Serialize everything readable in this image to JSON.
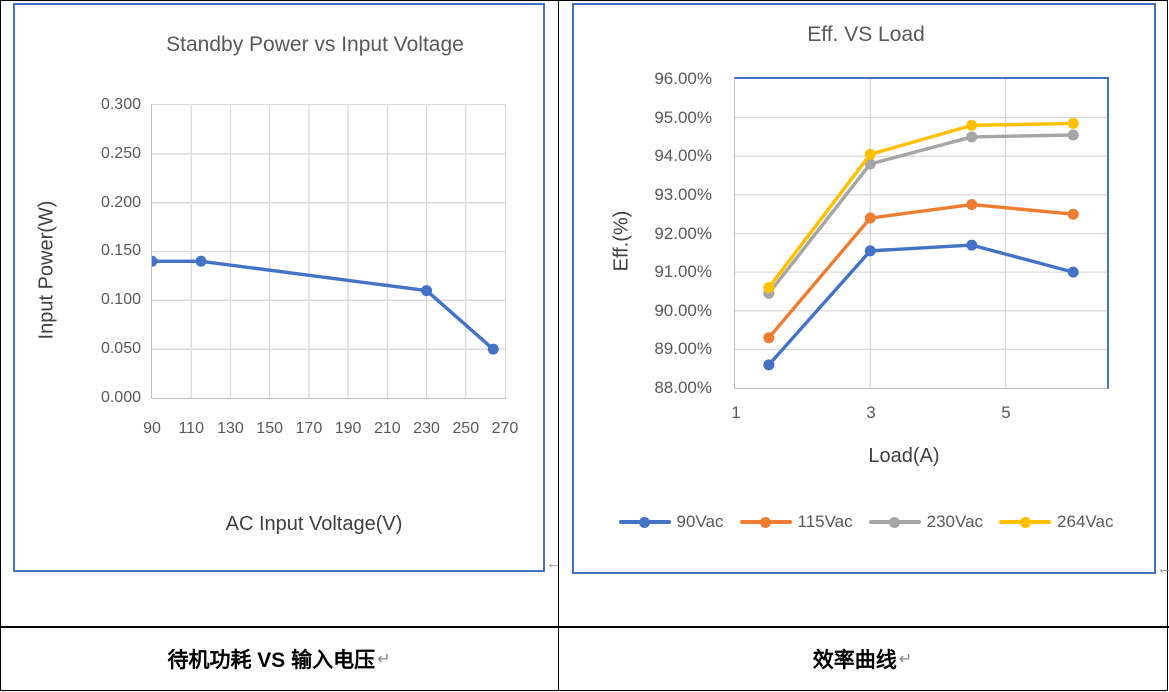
{
  "marks": {
    "anchor": "←",
    "return": "↵"
  },
  "colors": {
    "chart_box_border": "#4472C4",
    "table_border": "#000000",
    "gridline": "#D9D9D9",
    "axis_line": "#BFBFBF",
    "title_text": "#595959",
    "axis_title_text": "#404040"
  },
  "left_chart": {
    "title": "Standby Power vs Input Voltage",
    "y_axis_title": "Input Power(W)",
    "x_axis_title": "AC Input Voltage(V)",
    "y_ticks": [
      "0.300",
      "0.250",
      "0.200",
      "0.150",
      "0.100",
      "0.050",
      "0.000"
    ],
    "x_ticks": [
      "90",
      "110",
      "130",
      "150",
      "170",
      "190",
      "210",
      "230",
      "250",
      "270"
    ]
  },
  "right_chart": {
    "title": "Eff. VS Load",
    "y_axis_title": "Eff.(%)",
    "x_axis_title": "Load(A)",
    "y_ticks": [
      "96.00%",
      "95.00%",
      "94.00%",
      "93.00%",
      "92.00%",
      "91.00%",
      "90.00%",
      "89.00%",
      "88.00%"
    ],
    "x_ticks": [
      "1",
      "3",
      "5"
    ]
  },
  "captions": {
    "left": "待机功耗 VS 输入电压",
    "right": "效率曲线"
  },
  "chart_data": [
    {
      "type": "line",
      "title": "Standby Power vs Input Voltage",
      "xlabel": "AC Input Voltage(V)",
      "ylabel": "Input Power(W)",
      "x": [
        90,
        115,
        230,
        264
      ],
      "values": [
        0.14,
        0.14,
        0.11,
        0.05
      ],
      "series_color": "#4472C4",
      "xlim": [
        90,
        270
      ],
      "ylim": [
        0,
        0.3
      ],
      "x_ticks": [
        90,
        110,
        130,
        150,
        170,
        190,
        210,
        230,
        250,
        270
      ],
      "y_ticks": [
        0,
        0.05,
        0.1,
        0.15,
        0.2,
        0.25,
        0.3
      ],
      "grid": true,
      "legend_position": "none"
    },
    {
      "type": "line",
      "title": "Eff. VS Load",
      "xlabel": "Load(A)",
      "ylabel": "Eff.(%)",
      "x": [
        1.5,
        3,
        4.5,
        6
      ],
      "series": [
        {
          "name": "90Vac",
          "color": "#4472C4",
          "values": [
            88.6,
            91.55,
            91.7,
            91.0
          ]
        },
        {
          "name": "115Vac",
          "color": "#ED7D31",
          "values": [
            89.3,
            92.4,
            92.75,
            92.5
          ]
        },
        {
          "name": "230Vac",
          "color": "#A5A5A5",
          "values": [
            90.45,
            93.8,
            94.5,
            94.55
          ]
        },
        {
          "name": "264Vac",
          "color": "#FFC000",
          "values": [
            90.6,
            94.05,
            94.8,
            94.85
          ]
        }
      ],
      "xlim": [
        1,
        6.5
      ],
      "ylim": [
        88,
        96
      ],
      "x_ticks": [
        1,
        3,
        5
      ],
      "y_ticks": [
        88,
        89,
        90,
        91,
        92,
        93,
        94,
        95,
        96
      ],
      "grid": true,
      "legend_position": "bottom"
    }
  ]
}
